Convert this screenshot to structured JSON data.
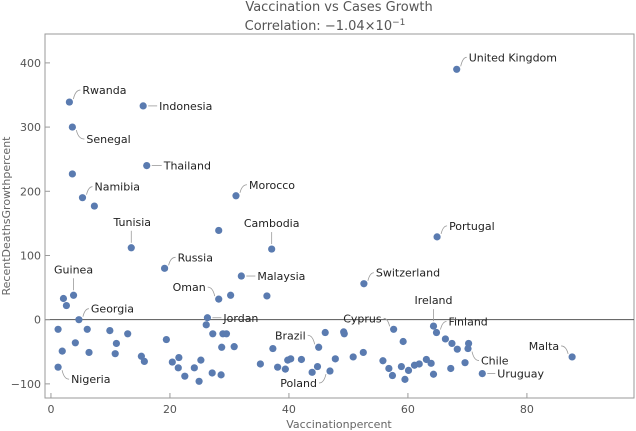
{
  "chart_data": {
    "type": "scatter",
    "title": "Vaccination vs Cases Growth",
    "subtitle_prefix": "Correlation: −1.04×10",
    "subtitle_exponent": "−1",
    "xlabel": "Vaccinationpercent",
    "ylabel": "RecentDeathsGrowthpercent",
    "xlim": [
      -1,
      98
    ],
    "ylim": [
      -122,
      445
    ],
    "xticks": [
      0,
      20,
      40,
      60,
      80
    ],
    "yticks": [
      -100,
      0,
      100,
      200,
      300,
      400
    ],
    "color": "#5a7bb0",
    "labeled_points": [
      {
        "name": "United Kingdom",
        "x": 68.2,
        "y": 390
      },
      {
        "name": "Rwanda",
        "x": 3.1,
        "y": 339
      },
      {
        "name": "Indonesia",
        "x": 15.5,
        "y": 333
      },
      {
        "name": "Senegal",
        "x": 3.6,
        "y": 300
      },
      {
        "name": "Thailand",
        "x": 16.1,
        "y": 240
      },
      {
        "name": "Namibia",
        "x": 5.3,
        "y": 190
      },
      {
        "name": "Morocco",
        "x": 31.1,
        "y": 193
      },
      {
        "name": "Tunisia",
        "x": 13.5,
        "y": 112
      },
      {
        "name": "Cambodia",
        "x": 37.1,
        "y": 110
      },
      {
        "name": "Portugal",
        "x": 64.9,
        "y": 129
      },
      {
        "name": "Russia",
        "x": 19.1,
        "y": 80
      },
      {
        "name": "Malaysia",
        "x": 32.0,
        "y": 68
      },
      {
        "name": "Switzerland",
        "x": 52.6,
        "y": 56
      },
      {
        "name": "Guinea",
        "x": 3.8,
        "y": 38
      },
      {
        "name": "Oman",
        "x": 28.2,
        "y": 32
      },
      {
        "name": "Georgia",
        "x": 4.7,
        "y": 0
      },
      {
        "name": "Jordan",
        "x": 26.3,
        "y": 3
      },
      {
        "name": "Ireland",
        "x": 64.3,
        "y": -10
      },
      {
        "name": "Cyprus",
        "x": 57.6,
        "y": -15
      },
      {
        "name": "Finland",
        "x": 64.8,
        "y": -20
      },
      {
        "name": "Brazil",
        "x": 45.0,
        "y": -43
      },
      {
        "name": "Chile",
        "x": 70.1,
        "y": -45
      },
      {
        "name": "Malta",
        "x": 87.6,
        "y": -58
      },
      {
        "name": "Nigeria",
        "x": 1.2,
        "y": -74
      },
      {
        "name": "Poland",
        "x": 46.9,
        "y": -80
      },
      {
        "name": "Uruguay",
        "x": 72.5,
        "y": -84
      }
    ],
    "points": [
      [
        3.6,
        227
      ],
      [
        7.3,
        177
      ],
      [
        28.2,
        139
      ],
      [
        30.2,
        38
      ],
      [
        36.3,
        37
      ],
      [
        2.1,
        33
      ],
      [
        2.6,
        22
      ],
      [
        1.2,
        -15
      ],
      [
        6.1,
        -15
      ],
      [
        4.1,
        -36
      ],
      [
        1.9,
        -49
      ],
      [
        6.4,
        -51
      ],
      [
        9.9,
        -17
      ],
      [
        11.0,
        -37
      ],
      [
        10.8,
        -53
      ],
      [
        12.9,
        -22
      ],
      [
        15.2,
        -57
      ],
      [
        15.7,
        -65
      ],
      [
        19.4,
        -31
      ],
      [
        20.4,
        -66
      ],
      [
        21.5,
        -59
      ],
      [
        21.4,
        -75
      ],
      [
        22.5,
        -88
      ],
      [
        24.1,
        -75
      ],
      [
        25.2,
        -63
      ],
      [
        24.9,
        -96
      ],
      [
        26.1,
        -8
      ],
      [
        27.2,
        -22
      ],
      [
        28.9,
        -22
      ],
      [
        29.5,
        -22
      ],
      [
        28.7,
        -43
      ],
      [
        30.8,
        -42
      ],
      [
        28.6,
        -86
      ],
      [
        35.2,
        -69
      ],
      [
        37.3,
        -45
      ],
      [
        38.1,
        -74
      ],
      [
        39.4,
        -77
      ],
      [
        39.8,
        -63
      ],
      [
        40.3,
        -61
      ],
      [
        42.1,
        -62
      ],
      [
        43.9,
        -82
      ],
      [
        44.8,
        -73
      ],
      [
        46.1,
        -20
      ],
      [
        47.8,
        -61
      ],
      [
        49.2,
        -19
      ],
      [
        49.3,
        -22
      ],
      [
        50.8,
        -58
      ],
      [
        52.5,
        -51
      ],
      [
        55.8,
        -64
      ],
      [
        56.8,
        -76
      ],
      [
        57.4,
        -87
      ],
      [
        58.9,
        -73
      ],
      [
        59.5,
        -93
      ],
      [
        59.2,
        -34
      ],
      [
        60.1,
        -79
      ],
      [
        61.1,
        -71
      ],
      [
        61.9,
        -69
      ],
      [
        63.1,
        -62
      ],
      [
        63.9,
        -68
      ],
      [
        64.3,
        -85
      ],
      [
        66.3,
        -30
      ],
      [
        67.4,
        -37
      ],
      [
        68.3,
        -46
      ],
      [
        67.2,
        -76
      ],
      [
        69.6,
        -67
      ],
      [
        70.2,
        -37
      ],
      [
        27.1,
        -83
      ]
    ]
  }
}
